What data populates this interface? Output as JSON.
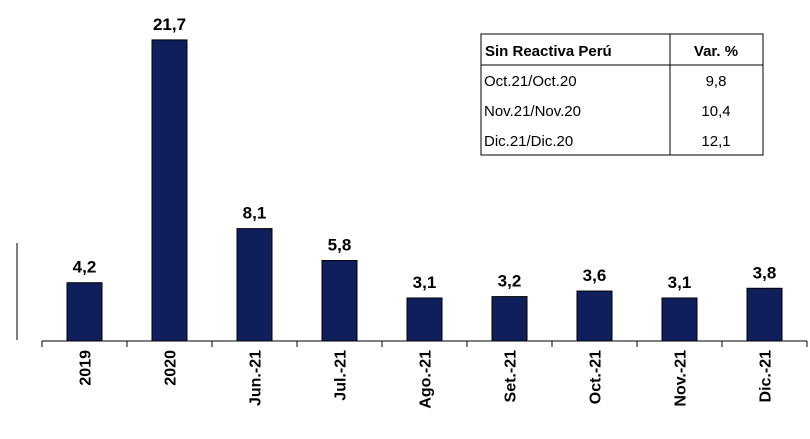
{
  "chart_data": {
    "type": "bar",
    "categories": [
      "2019",
      "2020",
      "Jun.-21",
      "Jul.-21",
      "Ago.-21",
      "Set.-21",
      "Oct.-21",
      "Nov.-21",
      "Dic.-21"
    ],
    "values": [
      4.2,
      21.7,
      8.1,
      5.8,
      3.1,
      3.2,
      3.6,
      3.1,
      3.8
    ],
    "value_labels": [
      "4,2",
      "21,7",
      "8,1",
      "5,8",
      "3,1",
      "3,2",
      "3,6",
      "3,1",
      "3,8"
    ],
    "color": "#0f1f5c",
    "ylim": [
      0,
      24
    ],
    "table": {
      "header": [
        "Sin Reactiva Perú",
        "Var. %"
      ],
      "rows": [
        [
          "Oct.21/Oct.20",
          "9,8"
        ],
        [
          "Nov.21/Nov.20",
          "10,4"
        ],
        [
          "Dic.21/Dic.20",
          "12,1"
        ]
      ]
    }
  }
}
